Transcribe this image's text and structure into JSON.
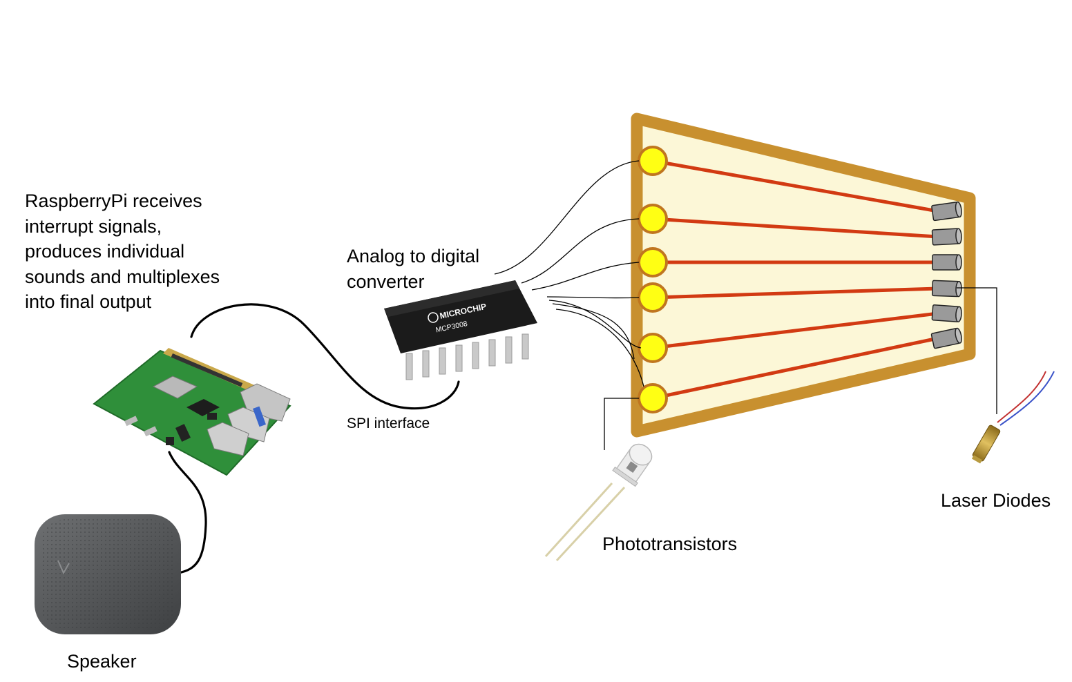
{
  "labels": {
    "raspberry_pi": [
      "RaspberryPi receives",
      "interrupt signals,",
      "produces individual",
      "sounds and multiplexes",
      "into final output"
    ],
    "adc": [
      "Analog to digital",
      "converter"
    ],
    "spi": "SPI interface",
    "speaker": "Speaker",
    "phototransistors": "Phototransistors",
    "laser_diodes": "Laser Diodes"
  },
  "chip": {
    "brand": "MICROCHIP",
    "model": "MCP3008"
  },
  "colors": {
    "frame": "#c8902f",
    "frame_fill": "#fcf7d7",
    "laser_beam": "#d23a12",
    "sensor": "#ffff14",
    "sensor_ring": "#c0761f",
    "pcb": "#2f8f3a",
    "speaker": "#5a5c5e"
  },
  "icons": {
    "board": "raspberry-pi-board-icon",
    "speaker": "speaker-icon",
    "chip": "adc-chip-icon",
    "phototransistor": "phototransistor-icon",
    "laser": "laser-diode-module-icon"
  }
}
